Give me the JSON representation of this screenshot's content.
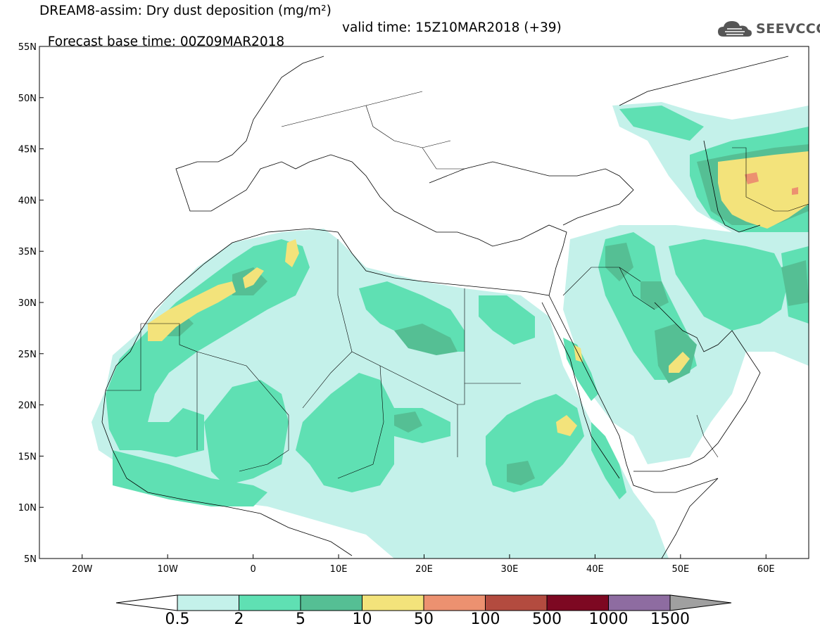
{
  "title": {
    "line1": "DREAM8-assim: Dry dust deposition (mg/m²)",
    "base": "Forecast base time: 00Z09MAR2018",
    "valid": "valid time: 15Z10MAR2018 (+39)"
  },
  "logo": {
    "text": "SEEVCCC",
    "icon": "cloud-logo-icon"
  },
  "map": {
    "lon_range": [
      -25,
      65
    ],
    "lat_range": [
      5,
      55
    ],
    "lat_labels": [
      "55N",
      "50N",
      "45N",
      "40N",
      "35N",
      "30N",
      "25N",
      "20N",
      "15N",
      "10N",
      "5N"
    ],
    "lat_values": [
      55,
      50,
      45,
      40,
      35,
      30,
      25,
      20,
      15,
      10,
      5
    ],
    "lon_labels": [
      "20W",
      "10W",
      "0",
      "10E",
      "20E",
      "30E",
      "40E",
      "50E",
      "60E"
    ],
    "lon_values": [
      -20,
      -10,
      0,
      10,
      20,
      30,
      40,
      50,
      60
    ]
  },
  "colorbar": {
    "levels": [
      "0.5",
      "2",
      "5",
      "10",
      "50",
      "100",
      "500",
      "1000",
      "1500"
    ],
    "colors": [
      "#c4f1ea",
      "#5fe0b3",
      "#55bf94",
      "#f3e37b",
      "#ec9170",
      "#b34b3f",
      "#7d0822",
      "#8e6ca1"
    ],
    "under_color": "#ffffff",
    "over_color": "#a0a0a0"
  }
}
